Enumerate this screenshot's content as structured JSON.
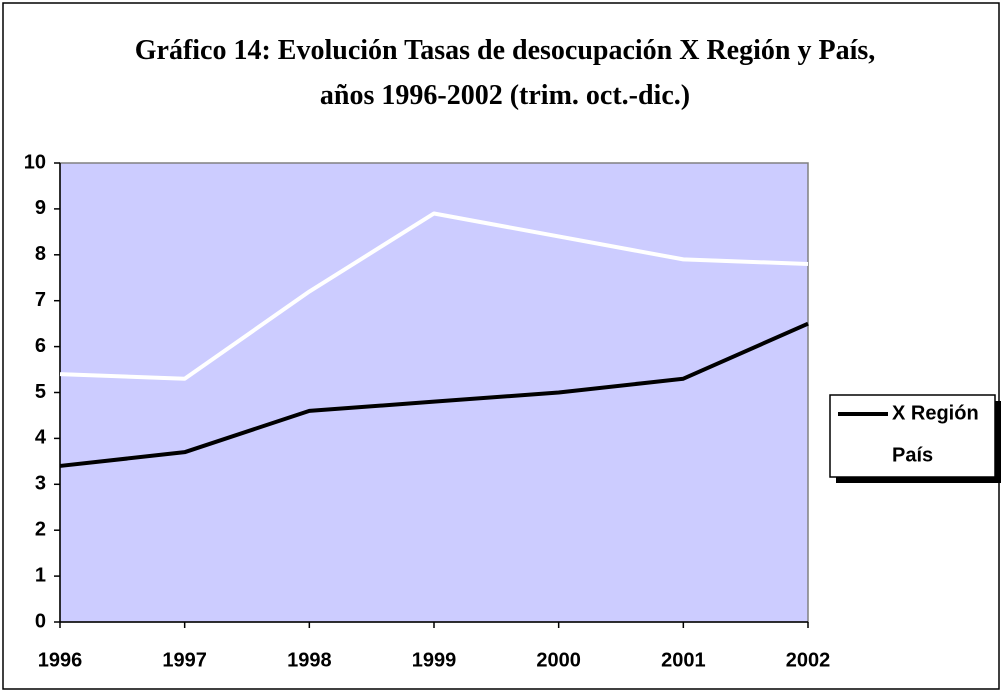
{
  "chart_data": {
    "type": "line",
    "title": "Gráfico 14: Evolución Tasas de desocupación X Región y País, años 1996-2002 (trim. oct.-dic.)",
    "categories": [
      "1996",
      "1997",
      "1998",
      "1999",
      "2000",
      "2001",
      "2002"
    ],
    "series": [
      {
        "name": "X Región",
        "color": "#000000",
        "values": [
          3.4,
          3.7,
          4.6,
          4.8,
          5.0,
          5.3,
          6.5
        ]
      },
      {
        "name": "País",
        "color": "#ffffff",
        "values": [
          5.4,
          5.3,
          7.2,
          8.9,
          8.4,
          7.9,
          7.8
        ]
      }
    ],
    "ylim": [
      0,
      10
    ],
    "yticks": [
      0,
      1,
      2,
      3,
      4,
      5,
      6,
      7,
      8,
      9,
      10
    ],
    "plot_background": "#ccccff",
    "legend": "right"
  }
}
